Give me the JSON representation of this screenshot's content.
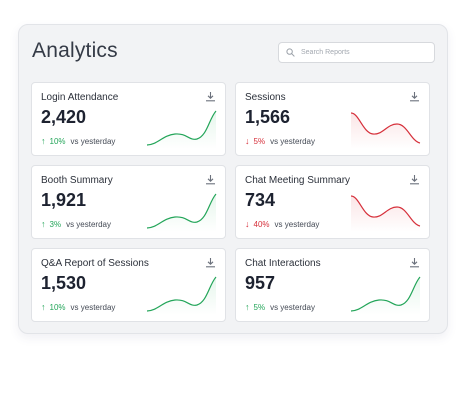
{
  "header": {
    "title": "Analytics"
  },
  "search": {
    "placeholder": "Search Reports"
  },
  "cards": [
    {
      "title": "Login Attendance",
      "value": "2,420",
      "change": "10%",
      "direction": "up",
      "comparison": "vs yesterday"
    },
    {
      "title": "Sessions",
      "value": "1,566",
      "change": "5%",
      "direction": "down",
      "comparison": "vs yesterday"
    },
    {
      "title": "Booth Summary",
      "value": "1,921",
      "change": "3%",
      "direction": "up",
      "comparison": "vs yesterday"
    },
    {
      "title": "Chat Meeting Summary",
      "value": "734",
      "change": "40%",
      "direction": "down",
      "comparison": "vs yesterday"
    },
    {
      "title": "Q&A Report of Sessions",
      "value": "1,530",
      "change": "10%",
      "direction": "up",
      "comparison": "vs yesterday"
    },
    {
      "title": "Chat Interactions",
      "value": "957",
      "change": "5%",
      "direction": "up",
      "comparison": "vs yesterday"
    }
  ],
  "colors": {
    "up": "#23a559",
    "down": "#d6303b",
    "up_fill": "#e6f6ec",
    "down_fill": "#fbe5e6"
  },
  "icons": {
    "search": "search-icon",
    "download": "download-icon",
    "up": "arrow-up-icon",
    "down": "arrow-down-icon"
  }
}
